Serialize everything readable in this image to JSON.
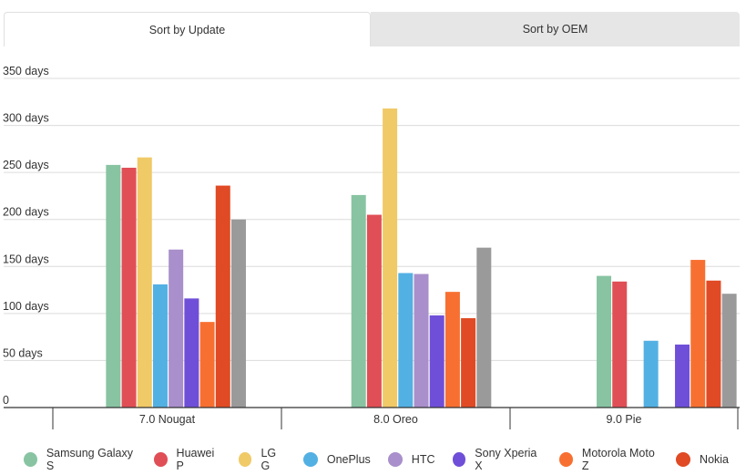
{
  "tabs": [
    {
      "label": "Sort by Update",
      "active": true
    },
    {
      "label": "Sort by OEM",
      "active": false
    }
  ],
  "chart_data": {
    "type": "bar",
    "title": "",
    "xlabel": "",
    "ylabel": "",
    "categories": [
      "7.0 Nougat",
      "8.0 Oreo",
      "9.0 Pie"
    ],
    "y_ticks": [
      "0",
      "50 days",
      "100 days",
      "150 days",
      "200 days",
      "250 days",
      "300 days",
      "350 days"
    ],
    "ylim": [
      0,
      350
    ],
    "grid": true,
    "legend_position": "bottom",
    "series": [
      {
        "name": "Samsung Galaxy S",
        "color": "#88c4a2",
        "values": [
          258,
          226,
          140
        ]
      },
      {
        "name": "Huawei P",
        "color": "#e04f56",
        "values": [
          255,
          205,
          134
        ]
      },
      {
        "name": "LG G",
        "color": "#f0ca67",
        "values": [
          266,
          318,
          null
        ]
      },
      {
        "name": "OnePlus",
        "color": "#53b0e3",
        "values": [
          131,
          143,
          71
        ]
      },
      {
        "name": "HTC",
        "color": "#a98fcb",
        "values": [
          168,
          142,
          null
        ]
      },
      {
        "name": "Sony Xperia X",
        "color": "#6f4fd8",
        "values": [
          116,
          98,
          67
        ]
      },
      {
        "name": "Motorola Moto Z",
        "color": "#f87031",
        "values": [
          91,
          123,
          157
        ]
      },
      {
        "name": "Nokia",
        "color": "#e04a24",
        "values": [
          236,
          95,
          135
        ]
      },
      {
        "name": "",
        "color": "#9a9a9a",
        "values": [
          200,
          170,
          121
        ]
      }
    ]
  }
}
